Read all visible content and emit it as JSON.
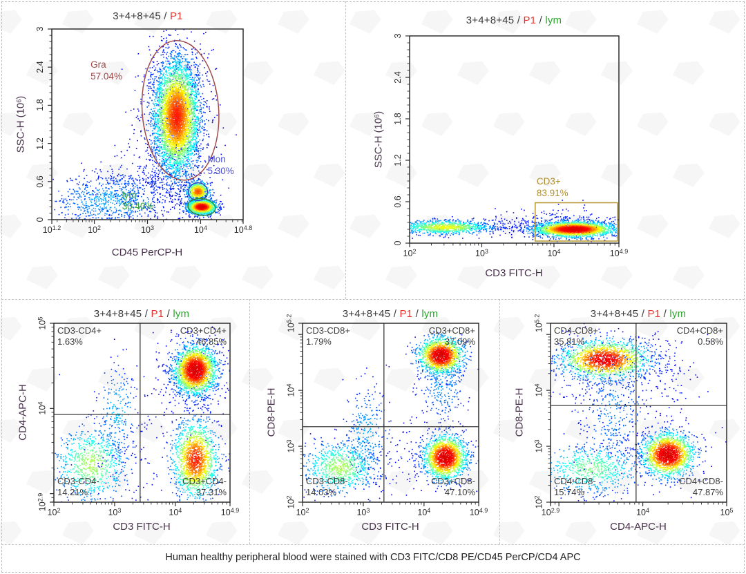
{
  "caption": {
    "text": "Human healthy peripheral blood were stained with CD3 FITC/CD8 PE/CD45 PerCP/CD4 APC"
  },
  "colors": {
    "sample_text": "#3a3a3a",
    "p1_text": "#e8312d",
    "lym_text": "#2ba52b",
    "axis_label": "#46304a",
    "tick_label": "#2a2a2a",
    "quadrant_label": "#3b3b3b",
    "axis_line": "#2e2e2e",
    "gra_gate": "#9e4b4b",
    "mon_gate": "#3a3ecb",
    "lym_gate": "#2e8b2e",
    "cd3_gate": "#b5952f"
  },
  "chart_data": [
    {
      "type": "scatter",
      "name": "ssc-vs-cd45",
      "title_segments": [
        {
          "text": "3+4+8+45 / ",
          "color": "#3a3a3a"
        },
        {
          "text": "P1",
          "color": "#e8312d"
        }
      ],
      "x_axis": {
        "label": "CD45 PerCP-H",
        "scale": "log",
        "min": 1.2,
        "max": 4.8,
        "ticks": [
          "1.2",
          "2",
          "3",
          "4",
          "4.8"
        ]
      },
      "y_axis": {
        "label": "SSC-H (10^6)",
        "scale": "linear",
        "min": 0,
        "max": 3,
        "ticks": [
          "0",
          "0.6",
          "1.2",
          "1.8",
          "2.4",
          "3"
        ],
        "minor_step": 0.1
      },
      "gates": [
        {
          "shape": "ellipse",
          "name": "Gra",
          "pct": "57.04%",
          "color": "#9e4b4b",
          "cx": 3.62,
          "cy": 1.72,
          "rx": 0.72,
          "ry": 1.1,
          "rot_deg": -4,
          "label_x": 1.93,
          "label_y": 2.52,
          "label_color": "#9e4b4b"
        },
        {
          "shape": "ellipse",
          "name": "Mon",
          "pct": "5.30%",
          "color": "#3a3ecb",
          "cx": 3.95,
          "cy": 0.44,
          "rx": 0.18,
          "ry": 0.14,
          "rot_deg": 0,
          "label_x": 4.13,
          "label_y": 1.03,
          "label_color": "#4a4ed2"
        },
        {
          "shape": "ellipse",
          "name": "lym",
          "pct": "30.40%",
          "color": "#2e8b2e",
          "cx": 4.02,
          "cy": 0.2,
          "rx": 0.26,
          "ry": 0.13,
          "rot_deg": 8,
          "label_x": 2.52,
          "label_y": 0.47,
          "label_color": "#3aa53a"
        }
      ],
      "quadrants": null,
      "populations": [
        {
          "cx": 2.25,
          "cy": 0.3,
          "sx": 0.55,
          "sy": 0.21,
          "n": 650,
          "peak": 0.3
        },
        {
          "cx": 2.6,
          "cy": 0.38,
          "sx": 0.38,
          "sy": 0.28,
          "n": 220,
          "peak": 0.22
        },
        {
          "cx": 3.4,
          "cy": 0.55,
          "sx": 0.5,
          "sy": 0.33,
          "n": 200,
          "peak": 0.18
        },
        {
          "cx": 3.55,
          "cy": 1.6,
          "sx": 0.35,
          "sy": 0.68,
          "n": 800,
          "peak": 0.18
        },
        {
          "cx": 3.55,
          "cy": 1.62,
          "sx": 0.21,
          "sy": 0.44,
          "n": 4200,
          "peak": 0.85
        },
        {
          "cx": 3.95,
          "cy": 0.44,
          "sx": 0.11,
          "sy": 0.08,
          "n": 600,
          "peak": 0.8
        },
        {
          "cx": 4.02,
          "cy": 0.2,
          "sx": 0.13,
          "sy": 0.055,
          "n": 1600,
          "peak": 1.0
        }
      ]
    },
    {
      "type": "scatter",
      "name": "ssc-vs-cd3",
      "title_segments": [
        {
          "text": "3+4+8+45 / ",
          "color": "#3a3a3a"
        },
        {
          "text": "P1",
          "color": "#e8312d"
        },
        {
          "text": " / ",
          "color": "#3a3a3a"
        },
        {
          "text": "lym",
          "color": "#2ba52b"
        }
      ],
      "x_axis": {
        "label": "CD3 FITC-H",
        "scale": "log",
        "min": 2,
        "max": 4.9,
        "ticks": [
          "2",
          "3",
          "4",
          "4.9"
        ]
      },
      "y_axis": {
        "label": "SSC-H (10^6)",
        "scale": "linear",
        "min": 0,
        "max": 3,
        "ticks": [
          "0",
          "0.6",
          "1.2",
          "1.8",
          "2.4",
          "3"
        ],
        "minor_step": 0.1
      },
      "gates": [
        {
          "shape": "rect",
          "name": "CD3+",
          "pct": "83.91%",
          "color": "#b5952f",
          "x1": 3.74,
          "x2": 4.88,
          "y1": 0.03,
          "y2": 0.585,
          "label_x": 3.76,
          "label_y": 0.97,
          "label_color": "#b08f2a"
        }
      ],
      "quadrants": null,
      "populations": [
        {
          "cx": 3.2,
          "cy": 0.26,
          "sx": 0.45,
          "sy": 0.07,
          "n": 110,
          "peak": 0.16
        },
        {
          "cx": 2.5,
          "cy": 0.23,
          "sx": 0.33,
          "sy": 0.05,
          "n": 950,
          "peak": 0.62
        },
        {
          "cx": 4.1,
          "cy": 0.3,
          "sx": 0.4,
          "sy": 0.1,
          "n": 220,
          "peak": 0.18
        },
        {
          "cx": 4.28,
          "cy": 0.2,
          "sx": 0.27,
          "sy": 0.055,
          "n": 2300,
          "peak": 1.0
        }
      ]
    },
    {
      "type": "scatter",
      "name": "cd4-vs-cd3",
      "title_segments": [
        {
          "text": "3+4+8+45 / ",
          "color": "#3a3a3a"
        },
        {
          "text": "P1",
          "color": "#e8312d"
        },
        {
          "text": " / ",
          "color": "#3a3a3a"
        },
        {
          "text": "lym",
          "color": "#2ba52b"
        }
      ],
      "x_axis": {
        "label": "CD3 FITC-H",
        "scale": "log",
        "min": 2,
        "max": 4.9,
        "ticks": [
          "2",
          "3",
          "4",
          "4.9"
        ]
      },
      "y_axis": {
        "label": "CD4-APC-H",
        "scale": "log",
        "min": 2.9,
        "max": 5,
        "ticks": [
          "2.9",
          "4",
          "5"
        ]
      },
      "gates": [],
      "quadrants": {
        "x_divider": 3.42,
        "y_divider": 3.93,
        "labels": [
          {
            "name": "CD3-CD4+",
            "pct": "1.63%",
            "corner": "tl"
          },
          {
            "name": "CD3+CD4+",
            "pct": "46.85%",
            "corner": "tr"
          },
          {
            "name": "CD3-CD4-",
            "pct": "14.21%",
            "corner": "bl"
          },
          {
            "name": "CD3+CD4-",
            "pct": "37.31%",
            "corner": "br"
          }
        ]
      },
      "populations": [
        {
          "cx": 3.4,
          "cy": 3.4,
          "sx": 0.7,
          "sy": 0.45,
          "n": 120,
          "peak": 0.14
        },
        {
          "cx": 4.3,
          "cy": 4.4,
          "sx": 0.3,
          "sy": 0.3,
          "n": 350,
          "peak": 0.2
        },
        {
          "cx": 3.05,
          "cy": 3.95,
          "sx": 0.17,
          "sy": 0.28,
          "n": 230,
          "peak": 0.32
        },
        {
          "cx": 2.62,
          "cy": 3.35,
          "sx": 0.3,
          "sy": 0.22,
          "n": 750,
          "peak": 0.55
        },
        {
          "cx": 4.33,
          "cy": 3.4,
          "sx": 0.18,
          "sy": 0.22,
          "n": 1500,
          "peak": 0.85
        },
        {
          "cx": 4.33,
          "cy": 4.45,
          "sx": 0.17,
          "sy": 0.14,
          "n": 2000,
          "peak": 1.0
        }
      ]
    },
    {
      "type": "scatter",
      "name": "cd8-vs-cd3",
      "title_segments": [
        {
          "text": "3+4+8+45 / ",
          "color": "#3a3a3a"
        },
        {
          "text": "P1",
          "color": "#e8312d"
        },
        {
          "text": " / ",
          "color": "#3a3a3a"
        },
        {
          "text": "lym",
          "color": "#2ba52b"
        }
      ],
      "x_axis": {
        "label": "CD3 FITC-H",
        "scale": "log",
        "min": 2,
        "max": 4.9,
        "ticks": [
          "2",
          "3",
          "4",
          "4.9"
        ]
      },
      "y_axis": {
        "label": "CD8-PE-H",
        "scale": "log",
        "min": 2,
        "max": 5.2,
        "ticks": [
          "2",
          "3",
          "4",
          "5.2"
        ]
      },
      "gates": [],
      "quadrants": {
        "x_divider": 3.34,
        "y_divider": 3.35,
        "labels": [
          {
            "name": "CD3-CD8+",
            "pct": "1.79%",
            "corner": "tl"
          },
          {
            "name": "CD3+CD8+",
            "pct": "37.09%",
            "corner": "tr"
          },
          {
            "name": "CD3-CD8-",
            "pct": "14.03%",
            "corner": "bl"
          },
          {
            "name": "CD3+CD8-",
            "pct": "47.10%",
            "corner": "br"
          }
        ]
      },
      "populations": [
        {
          "cx": 3.5,
          "cy": 2.8,
          "sx": 0.6,
          "sy": 0.4,
          "n": 120,
          "peak": 0.14
        },
        {
          "cx": 4.3,
          "cy": 4.15,
          "sx": 0.2,
          "sy": 0.38,
          "n": 330,
          "peak": 0.28
        },
        {
          "cx": 3.05,
          "cy": 3.2,
          "sx": 0.2,
          "sy": 0.45,
          "n": 270,
          "peak": 0.3
        },
        {
          "cx": 2.62,
          "cy": 2.62,
          "sx": 0.3,
          "sy": 0.23,
          "n": 750,
          "peak": 0.55
        },
        {
          "cx": 4.28,
          "cy": 4.62,
          "sx": 0.18,
          "sy": 0.16,
          "n": 1400,
          "peak": 1.0
        },
        {
          "cx": 4.35,
          "cy": 2.8,
          "sx": 0.17,
          "sy": 0.19,
          "n": 1700,
          "peak": 1.0
        }
      ]
    },
    {
      "type": "scatter",
      "name": "cd8-vs-cd4",
      "title_segments": [
        {
          "text": "3+4+8+45 / ",
          "color": "#3a3a3a"
        },
        {
          "text": "P1",
          "color": "#e8312d"
        },
        {
          "text": " / ",
          "color": "#3a3a3a"
        },
        {
          "text": "lym",
          "color": "#2ba52b"
        }
      ],
      "x_axis": {
        "label": "CD4-APC-H",
        "scale": "log",
        "min": 2.9,
        "max": 5,
        "ticks": [
          "2.9",
          "4",
          "5"
        ]
      },
      "y_axis": {
        "label": "CD8-PE-H",
        "scale": "log",
        "min": 2,
        "max": 5.2,
        "ticks": [
          "2",
          "3",
          "4",
          "5.2"
        ]
      },
      "gates": [],
      "quadrants": {
        "x_divider": 3.92,
        "y_divider": 3.73,
        "labels": [
          {
            "name": "CD4-CD8+",
            "pct": "35.81%",
            "corner": "tl"
          },
          {
            "name": "CD4+CD8+",
            "pct": "0.58%",
            "corner": "tr"
          },
          {
            "name": "CD4-CD8-",
            "pct": "15.74%",
            "corner": "bl"
          },
          {
            "name": "CD4+CD8-",
            "pct": "47.87%",
            "corner": "br"
          }
        ]
      },
      "populations": [
        {
          "cx": 3.95,
          "cy": 3.3,
          "sx": 0.5,
          "sy": 0.55,
          "n": 110,
          "peak": 0.13
        },
        {
          "cx": 3.5,
          "cy": 4.45,
          "sx": 0.45,
          "sy": 0.3,
          "n": 330,
          "peak": 0.2
        },
        {
          "cx": 3.65,
          "cy": 3.6,
          "sx": 0.22,
          "sy": 0.5,
          "n": 320,
          "peak": 0.26
        },
        {
          "cx": 4.32,
          "cy": 4.2,
          "sx": 0.18,
          "sy": 0.45,
          "n": 80,
          "peak": 0.16
        },
        {
          "cx": 3.38,
          "cy": 2.6,
          "sx": 0.3,
          "sy": 0.22,
          "n": 650,
          "peak": 0.5
        },
        {
          "cx": 3.55,
          "cy": 4.55,
          "sx": 0.26,
          "sy": 0.17,
          "n": 1500,
          "peak": 0.92
        },
        {
          "cx": 4.3,
          "cy": 2.85,
          "sx": 0.15,
          "sy": 0.19,
          "n": 1700,
          "peak": 1.0
        }
      ]
    }
  ]
}
